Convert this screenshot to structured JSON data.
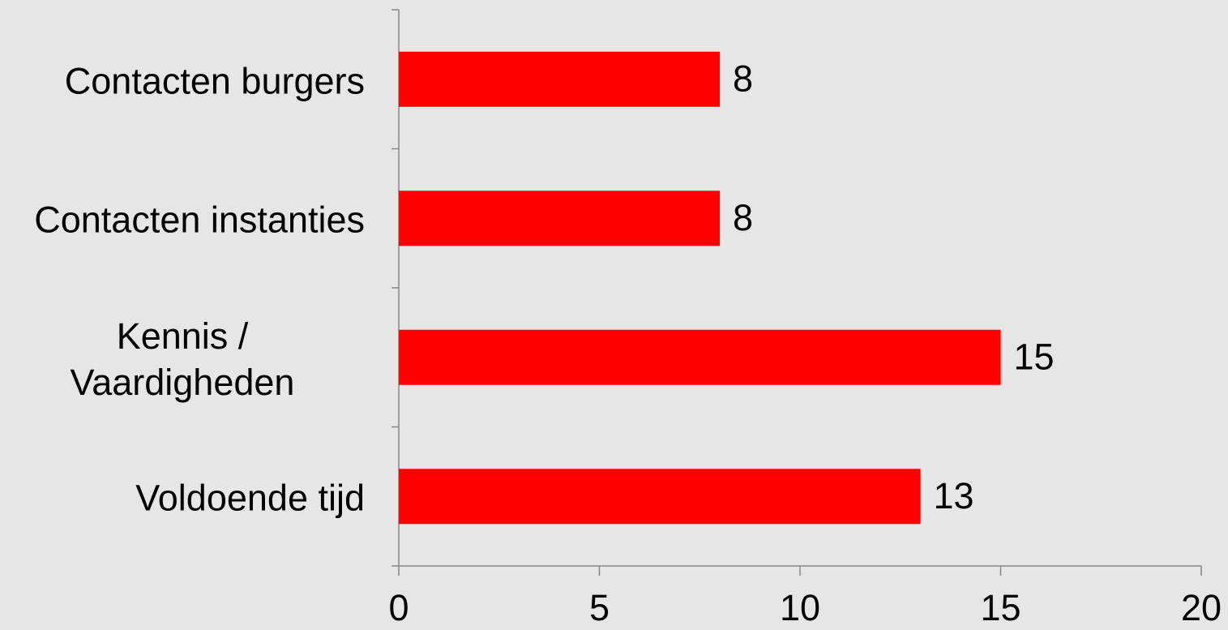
{
  "chart_data": {
    "type": "bar",
    "orientation": "horizontal",
    "categories": [
      "Contacten burgers",
      "Contacten instanties",
      "Kennis / Vaardigheden",
      "Voldoende tijd"
    ],
    "values": [
      8,
      8,
      15,
      13
    ],
    "color": "#ff0000",
    "xlim": [
      0,
      20
    ],
    "xticks": [
      0,
      5,
      10,
      15,
      20
    ],
    "grid": false
  }
}
